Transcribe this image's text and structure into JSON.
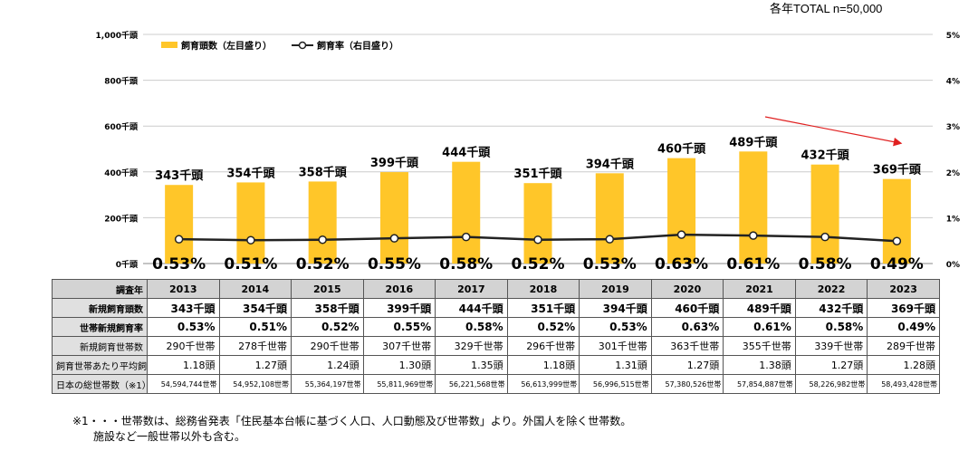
{
  "header": {
    "sample_note": "各年TOTAL n=50,000"
  },
  "chart_data": {
    "type": "bar",
    "categories": [
      "2013",
      "2014",
      "2015",
      "2016",
      "2017",
      "2018",
      "2019",
      "2020",
      "2021",
      "2022",
      "2023"
    ],
    "series": [
      {
        "name": "飼育頭数（左目盛り）",
        "type": "bar",
        "axis": "left",
        "values": [
          343,
          354,
          358,
          399,
          444,
          351,
          394,
          460,
          489,
          432,
          369
        ],
        "labels": [
          "343千頭",
          "354千頭",
          "358千頭",
          "399千頭",
          "444千頭",
          "351千頭",
          "394千頭",
          "460千頭",
          "489千頭",
          "432千頭",
          "369千頭"
        ]
      },
      {
        "name": "飼育率（右目盛り）",
        "type": "line",
        "axis": "right",
        "values": [
          0.53,
          0.51,
          0.52,
          0.55,
          0.58,
          0.52,
          0.53,
          0.63,
          0.61,
          0.58,
          0.49
        ],
        "labels": [
          "0.53%",
          "0.51%",
          "0.52%",
          "0.55%",
          "0.58%",
          "0.52%",
          "0.53%",
          "0.63%",
          "0.61%",
          "0.58%",
          "0.49%"
        ]
      }
    ],
    "y_left": {
      "ylim": [
        0,
        1000
      ],
      "ticks": [
        "0千頭",
        "200千頭",
        "400千頭",
        "600千頭",
        "800千頭",
        "1,000千頭"
      ]
    },
    "y_right": {
      "ylim": [
        0,
        5
      ],
      "ticks": [
        "0%",
        "1%",
        "2%",
        "3%",
        "4%",
        "5%"
      ]
    },
    "colors": {
      "bar": "#FFC629",
      "line": "#222222",
      "grid": "#cccccc",
      "arrow": "#e02020"
    },
    "legend_position": "top-left",
    "grid": true
  },
  "table": {
    "rows": [
      {
        "label": "調査年",
        "style": "hdr",
        "cells": [
          "2013",
          "2014",
          "2015",
          "2016",
          "2017",
          "2018",
          "2019",
          "2020",
          "2021",
          "2022",
          "2023"
        ]
      },
      {
        "label": "新規飼育頭数",
        "style": "bold",
        "cells": [
          "343千頭",
          "354千頭",
          "358千頭",
          "399千頭",
          "444千頭",
          "351千頭",
          "394千頭",
          "460千頭",
          "489千頭",
          "432千頭",
          "369千頭"
        ]
      },
      {
        "label": "世帯新規飼育率",
        "style": "bold",
        "cells": [
          "0.53%",
          "0.51%",
          "0.52%",
          "0.55%",
          "0.58%",
          "0.52%",
          "0.53%",
          "0.63%",
          "0.61%",
          "0.58%",
          "0.49%"
        ]
      },
      {
        "label": "新規飼育世帯数",
        "style": "",
        "cells": [
          "290千世帯",
          "278千世帯",
          "290千世帯",
          "307千世帯",
          "329千世帯",
          "296千世帯",
          "301千世帯",
          "363千世帯",
          "355千世帯",
          "339千世帯",
          "289千世帯"
        ]
      },
      {
        "label": "飼育世帯あたり平均飼育頭数",
        "style": "",
        "cells": [
          "1.18頭",
          "1.27頭",
          "1.24頭",
          "1.30頭",
          "1.35頭",
          "1.18頭",
          "1.31頭",
          "1.27頭",
          "1.38頭",
          "1.27頭",
          "1.28頭"
        ]
      },
      {
        "label": "日本の総世帯数（※1）",
        "style": "small",
        "cells": [
          "54,594,744世帯",
          "54,952,108世帯",
          "55,364,197世帯",
          "55,811,969世帯",
          "56,221,568世帯",
          "56,613,999世帯",
          "56,996,515世帯",
          "57,380,526世帯",
          "57,854,887世帯",
          "58,226,982世帯",
          "58,493,428世帯"
        ]
      }
    ]
  },
  "notes": [
    "※1・・・世帯数は、総務省発表「住民基本台帳に基づく人口、人口動態及び世帯数」より。外国人を除く世帯数。",
    "施設など一般世帯以外も含む。"
  ]
}
